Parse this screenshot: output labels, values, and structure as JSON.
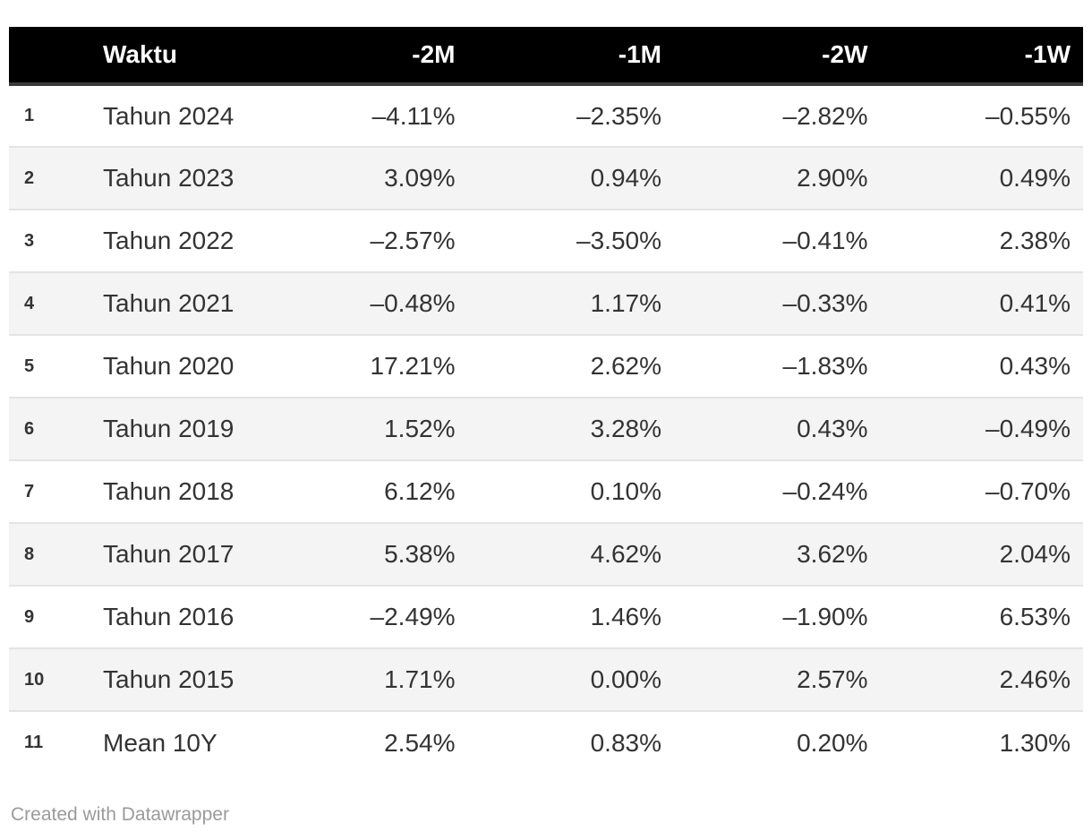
{
  "chart_data": {
    "type": "table",
    "title": "",
    "columns": [
      "Waktu",
      "-2M",
      "-1M",
      "-2W",
      "-1W"
    ],
    "rows": [
      [
        "Tahun 2024",
        -4.11,
        -2.35,
        -2.82,
        -0.55
      ],
      [
        "Tahun 2023",
        3.09,
        0.94,
        2.9,
        0.49
      ],
      [
        "Tahun 2022",
        -2.57,
        -3.5,
        -0.41,
        2.38
      ],
      [
        "Tahun 2021",
        -0.48,
        1.17,
        -0.33,
        0.41
      ],
      [
        "Tahun 2020",
        17.21,
        2.62,
        -1.83,
        0.43
      ],
      [
        "Tahun 2019",
        1.52,
        3.28,
        0.43,
        -0.49
      ],
      [
        "Tahun 2018",
        6.12,
        0.1,
        -0.24,
        -0.7
      ],
      [
        "Tahun 2017",
        5.38,
        4.62,
        3.62,
        2.04
      ],
      [
        "Tahun 2016",
        -2.49,
        1.46,
        -1.9,
        6.53
      ],
      [
        "Tahun 2015",
        1.71,
        0.0,
        2.57,
        2.46
      ],
      [
        "Mean 10Y",
        2.54,
        0.83,
        0.2,
        1.3
      ]
    ],
    "unit": "%",
    "layout_hints": {
      "zebra_striping": true,
      "numbered_rows": true,
      "header_background": "black"
    }
  },
  "table": {
    "index_header": "",
    "columns": [
      {
        "label": "Waktu",
        "align": "left"
      },
      {
        "label": "-2M",
        "align": "right"
      },
      {
        "label": "-1M",
        "align": "right"
      },
      {
        "label": "-2W",
        "align": "right"
      },
      {
        "label": "-1W",
        "align": "right"
      }
    ],
    "rows": [
      {
        "num": "1",
        "cells": [
          "Tahun 2024",
          "–4.11%",
          "–2.35%",
          "–2.82%",
          "–0.55%"
        ]
      },
      {
        "num": "2",
        "cells": [
          "Tahun 2023",
          "3.09%",
          "0.94%",
          "2.90%",
          "0.49%"
        ]
      },
      {
        "num": "3",
        "cells": [
          "Tahun 2022",
          "–2.57%",
          "–3.50%",
          "–0.41%",
          "2.38%"
        ]
      },
      {
        "num": "4",
        "cells": [
          "Tahun 2021",
          "–0.48%",
          "1.17%",
          "–0.33%",
          "0.41%"
        ]
      },
      {
        "num": "5",
        "cells": [
          "Tahun 2020",
          "17.21%",
          "2.62%",
          "–1.83%",
          "0.43%"
        ]
      },
      {
        "num": "6",
        "cells": [
          "Tahun 2019",
          "1.52%",
          "3.28%",
          "0.43%",
          "–0.49%"
        ]
      },
      {
        "num": "7",
        "cells": [
          "Tahun 2018",
          "6.12%",
          "0.10%",
          "–0.24%",
          "–0.70%"
        ]
      },
      {
        "num": "8",
        "cells": [
          "Tahun 2017",
          "5.38%",
          "4.62%",
          "3.62%",
          "2.04%"
        ]
      },
      {
        "num": "9",
        "cells": [
          "Tahun 2016",
          "–2.49%",
          "1.46%",
          "–1.90%",
          "6.53%"
        ]
      },
      {
        "num": "10",
        "cells": [
          "Tahun 2015",
          "1.71%",
          "0.00%",
          "2.57%",
          "2.46%"
        ]
      },
      {
        "num": "11",
        "cells": [
          "Mean 10Y",
          "2.54%",
          "0.83%",
          "0.20%",
          "1.30%"
        ]
      }
    ]
  },
  "footer": {
    "credit": "Created with Datawrapper"
  },
  "colors": {
    "header_bg": "#000000",
    "header_text": "#ffffff",
    "header_border": "#3a3a3a",
    "body_text": "#333333",
    "stripe_bg": "#f4f4f4",
    "row_border": "#e4e4e4",
    "credit_text": "#9b9b9b"
  }
}
